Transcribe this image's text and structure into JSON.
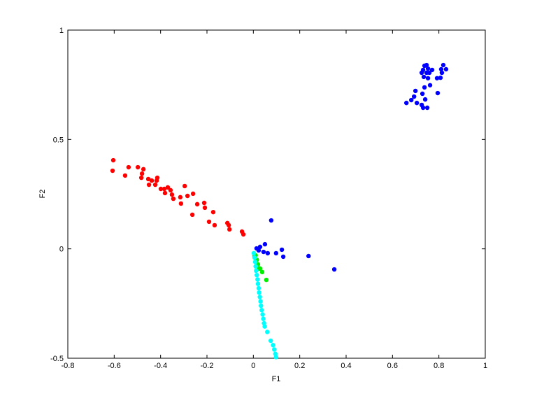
{
  "chart_data": {
    "type": "scatter",
    "xlabel": "F1",
    "ylabel": "F2",
    "xlim": [
      -0.8,
      1
    ],
    "ylim": [
      -0.5,
      1
    ],
    "xticks": [
      -0.8,
      -0.6,
      -0.4,
      -0.2,
      0,
      0.2,
      0.4,
      0.6,
      0.8,
      1
    ],
    "yticks": [
      -0.5,
      0,
      0.5,
      1
    ],
    "series": [
      {
        "color": "#ff0000",
        "x": [
          -0.604,
          -0.607,
          -0.553,
          -0.538,
          -0.498,
          -0.474,
          -0.48,
          -0.483,
          -0.453,
          -0.45,
          -0.438,
          -0.417,
          -0.414,
          -0.423,
          -0.399,
          -0.384,
          -0.381,
          -0.369,
          -0.357,
          -0.351,
          -0.345,
          -0.315,
          -0.312,
          -0.296,
          -0.284,
          -0.26,
          -0.263,
          -0.242,
          -0.212,
          -0.209,
          -0.191,
          -0.173,
          -0.167,
          -0.112,
          -0.106,
          -0.103,
          -0.049,
          -0.043
        ],
        "y": [
          0.405,
          0.357,
          0.335,
          0.373,
          0.373,
          0.364,
          0.344,
          0.325,
          0.319,
          0.293,
          0.312,
          0.312,
          0.325,
          0.293,
          0.274,
          0.274,
          0.255,
          0.281,
          0.268,
          0.248,
          0.229,
          0.236,
          0.207,
          0.287,
          0.242,
          0.252,
          0.156,
          0.204,
          0.21,
          0.188,
          0.124,
          0.168,
          0.108,
          0.118,
          0.108,
          0.089,
          0.079,
          0.066
        ]
      },
      {
        "color": "#0000ff",
        "x": [
          0.66,
          0.681,
          0.693,
          0.699,
          0.705,
          0.726,
          0.729,
          0.741,
          0.75,
          0.732,
          0.726,
          0.732,
          0.738,
          0.747,
          0.753,
          0.747,
          0.759,
          0.771,
          0.735,
          0.753,
          0.738,
          0.762,
          0.795,
          0.792,
          0.81,
          0.819,
          0.831,
          0.813,
          0.807,
          0.014,
          0.029,
          0.044,
          0.05,
          0.062,
          0.077,
          0.098,
          0.123,
          0.129,
          0.238,
          0.349,
          0.023
        ],
        "y": [
          0.667,
          0.68,
          0.696,
          0.722,
          0.667,
          0.658,
          0.709,
          0.683,
          0.645,
          0.645,
          0.805,
          0.818,
          0.837,
          0.84,
          0.824,
          0.805,
          0.805,
          0.818,
          0.786,
          0.78,
          0.738,
          0.748,
          0.712,
          0.78,
          0.821,
          0.84,
          0.821,
          0.805,
          0.782,
          0.002,
          0.009,
          -0.014,
          0.021,
          -0.02,
          0.13,
          -0.02,
          -0.004,
          -0.036,
          -0.033,
          -0.094,
          -0.007
        ]
      },
      {
        "color": "#00ee00",
        "x": [
          0.005,
          0.011,
          0.02,
          0.029,
          0.038,
          0.056,
          0.01,
          0.015,
          0.025
        ],
        "y": [
          -0.033,
          -0.052,
          -0.071,
          -0.09,
          -0.106,
          -0.142,
          -0.03,
          -0.05,
          -0.09
        ]
      },
      {
        "color": "#00ffff",
        "x": [
          0.002,
          0.005,
          0.008,
          0.01,
          0.012,
          0.015,
          0.018,
          0.02,
          0.023,
          0.025,
          0.028,
          0.031,
          0.033,
          0.036,
          0.04,
          0.043,
          0.046,
          0.049,
          0.06,
          0.075,
          0.085,
          0.09,
          0.095,
          0.098
        ],
        "y": [
          -0.02,
          -0.04,
          -0.06,
          -0.08,
          -0.1,
          -0.12,
          -0.14,
          -0.16,
          -0.18,
          -0.2,
          -0.22,
          -0.24,
          -0.26,
          -0.28,
          -0.3,
          -0.32,
          -0.34,
          -0.355,
          -0.38,
          -0.42,
          -0.44,
          -0.46,
          -0.48,
          -0.495
        ]
      }
    ]
  }
}
